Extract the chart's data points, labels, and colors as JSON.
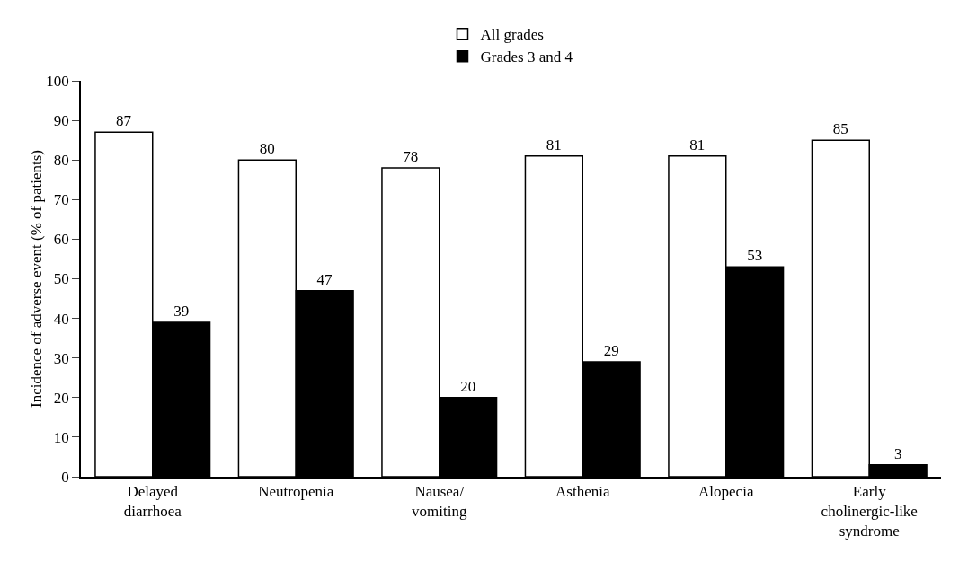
{
  "chart_data": {
    "type": "bar",
    "ylabel": "Incidence of adverse event (% of patients)",
    "categories": [
      "Delayed\ndiarrhoea",
      "Neutropenia",
      "Nausea/\nvomiting",
      "Asthenia",
      "Alopecia",
      "Early\ncholinergic-like\nsyndrome"
    ],
    "series": [
      {
        "name": "All grades",
        "color": "#ffffff",
        "values": [
          87,
          80,
          78,
          81,
          81,
          85
        ]
      },
      {
        "name": "Grades 3 and 4",
        "color": "#000000",
        "values": [
          39,
          47,
          20,
          29,
          53,
          3
        ]
      }
    ],
    "ylim": [
      0,
      100
    ],
    "yticks": [
      0,
      10,
      20,
      30,
      40,
      50,
      60,
      70,
      80,
      90,
      100
    ],
    "grid": false,
    "legend": "top",
    "data_labels": true
  }
}
